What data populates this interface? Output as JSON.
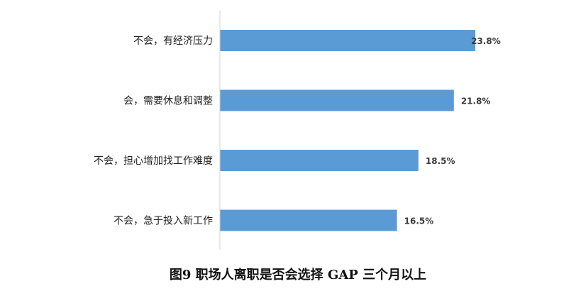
{
  "chart_data": {
    "type": "bar",
    "orientation": "horizontal",
    "title": "图9 职场人离职是否会选择 GAP 三个月以上",
    "categories": [
      "不会，有经济压力",
      "会，需要休息和调整",
      "不会，担心增加找工作难度",
      "不会，急于投入新工作"
    ],
    "values": [
      23.8,
      21.8,
      18.5,
      16.5
    ],
    "value_labels": [
      "23.8%",
      "21.8%",
      "18.5%",
      "16.5%"
    ],
    "xlim": [
      0,
      25
    ],
    "grid": false,
    "legend": "none",
    "bar_color": "#5b9bd5",
    "axis_color": "#d0d0d0"
  }
}
